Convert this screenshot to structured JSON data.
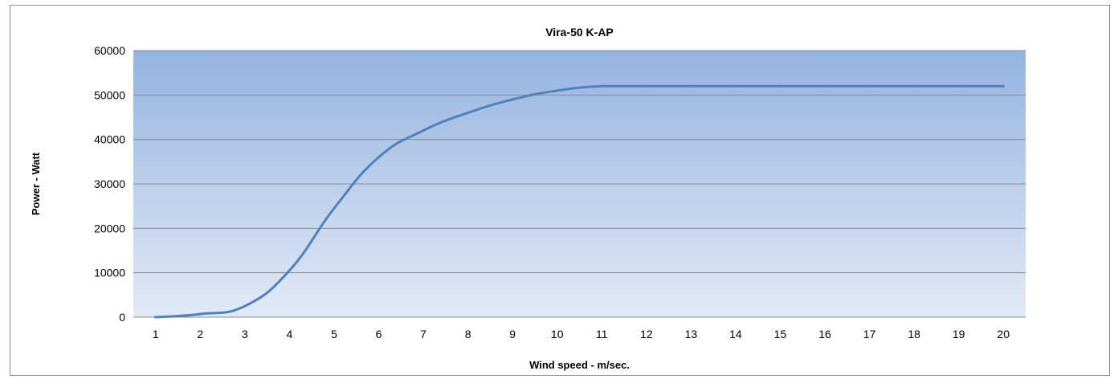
{
  "chart_data": {
    "type": "line",
    "title": "Vira-50 K-AP",
    "xlabel": "Wind speed - m/sec.",
    "ylabel": "Power  - Watt",
    "categories": [
      "1",
      "2",
      "3",
      "4",
      "5",
      "6",
      "7",
      "8",
      "9",
      "10",
      "11",
      "12",
      "13",
      "14",
      "15",
      "16",
      "17",
      "18",
      "19",
      "20"
    ],
    "series": [
      {
        "values": [
          0,
          700,
          2500,
          10500,
          24500,
          36000,
          42000,
          46000,
          49000,
          51000,
          52000,
          52000,
          52000,
          52000,
          52000,
          52000,
          52000,
          52000,
          52000,
          52000
        ]
      }
    ],
    "ylim": [
      0,
      60000
    ],
    "yticks": [
      "0",
      "10000",
      "20000",
      "30000",
      "40000",
      "50000",
      "60000"
    ],
    "grid": true,
    "legend": "none",
    "colors": {
      "line": "#4f81bd",
      "plot_top": "#95b3e0",
      "plot_bottom": "#e2eaf6",
      "gridline": "#8a8a8a",
      "frame": "#8c8c8c"
    }
  }
}
